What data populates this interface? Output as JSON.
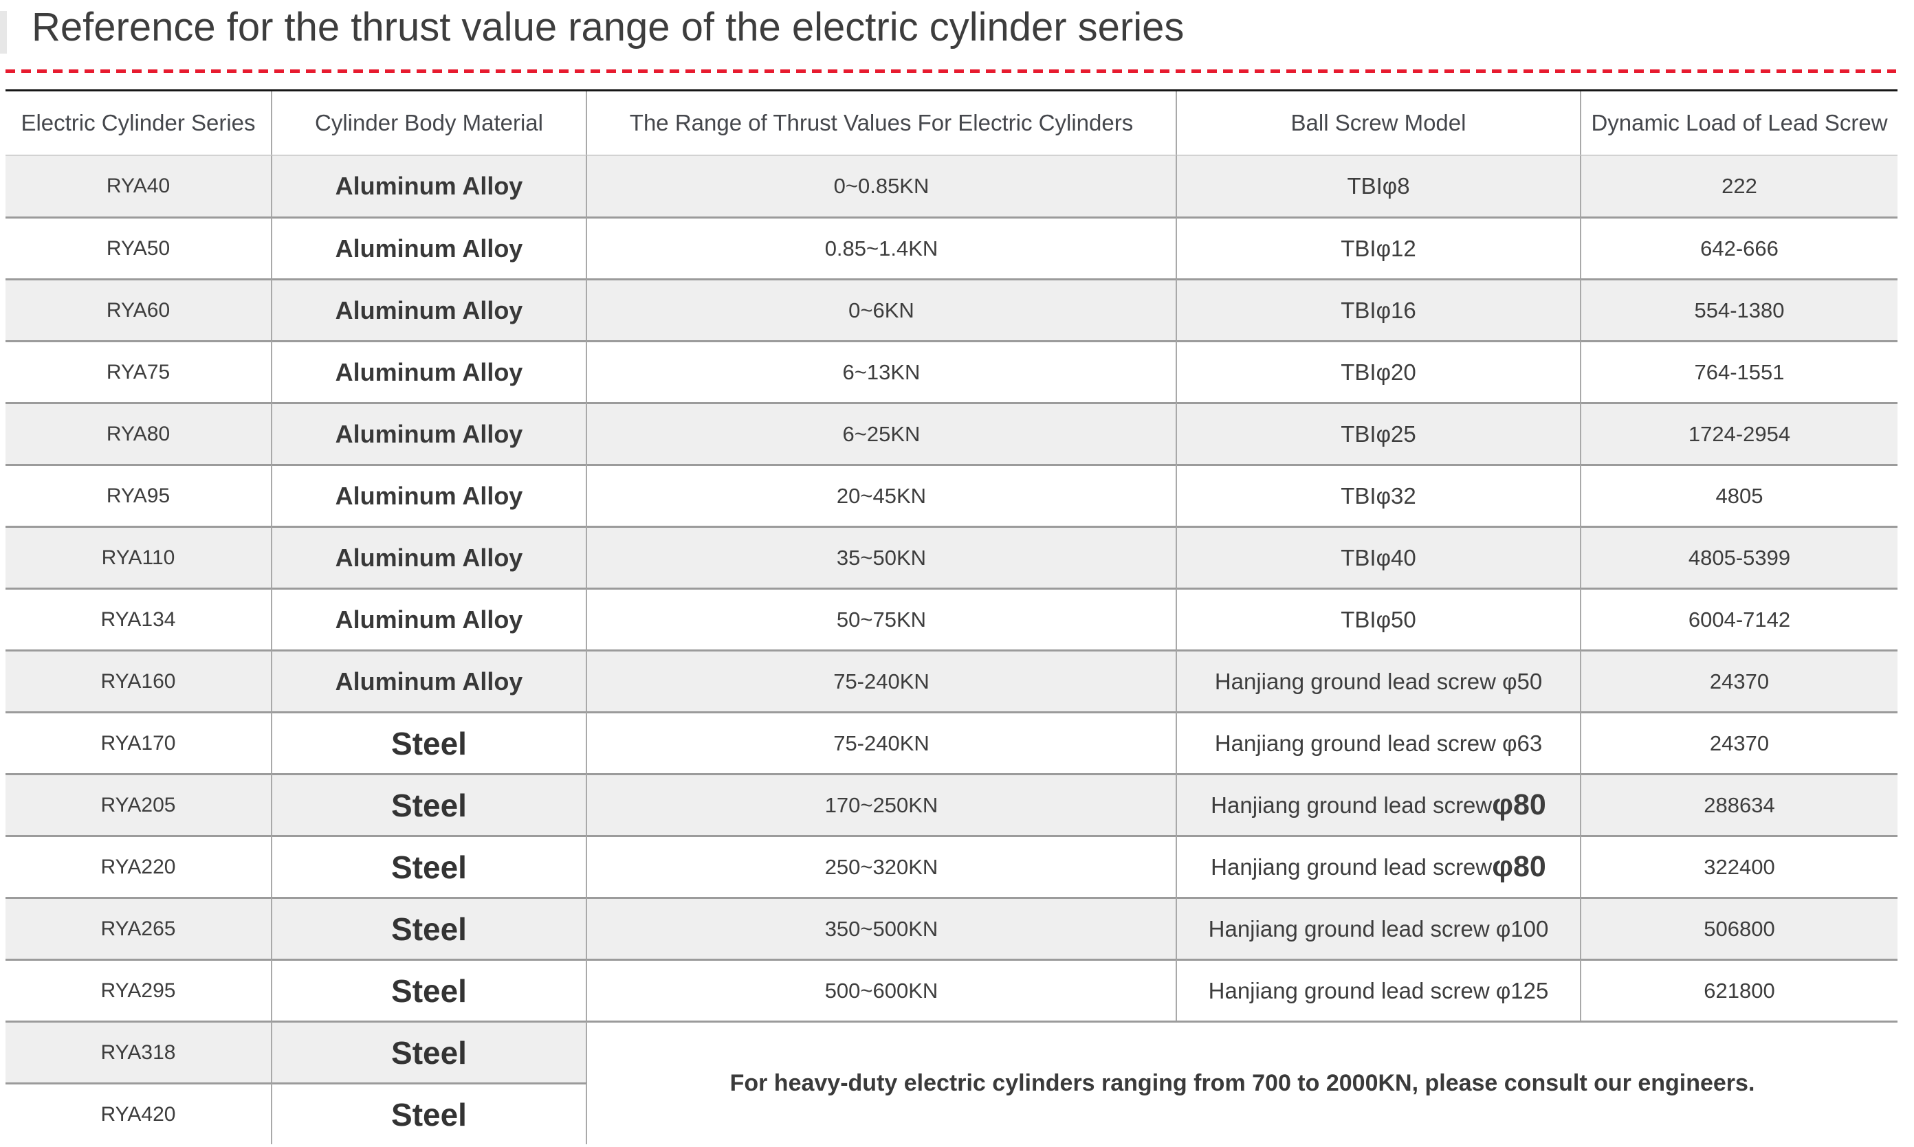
{
  "page": {
    "title": "Reference for the thrust value range of the electric cylinder series"
  },
  "accent": {
    "dashed_divider_color": "#e71b2f",
    "stripe_color": "#efefef",
    "top_border_color": "#161616"
  },
  "table": {
    "headers": [
      "Electric Cylinder Series",
      "Cylinder Body Material",
      "The Range of Thrust Values For Electric Cylinders",
      "Ball Screw Model",
      "Dynamic Load of Lead Screw"
    ],
    "rows": [
      {
        "series": "RYA40",
        "material": "Aluminum Alloy",
        "thrust": "0~0.85KN",
        "model": "TBIφ8",
        "model_big": "",
        "load": "222"
      },
      {
        "series": "RYA50",
        "material": "Aluminum Alloy",
        "thrust": "0.85~1.4KN",
        "model": "TBIφ12",
        "model_big": "",
        "load": "642-666"
      },
      {
        "series": "RYA60",
        "material": "Aluminum Alloy",
        "thrust": "0~6KN",
        "model": "TBIφ16",
        "model_big": "",
        "load": "554-1380"
      },
      {
        "series": "RYA75",
        "material": "Aluminum Alloy",
        "thrust": "6~13KN",
        "model": "TBIφ20",
        "model_big": "",
        "load": "764-1551"
      },
      {
        "series": "RYA80",
        "material": "Aluminum Alloy",
        "thrust": "6~25KN",
        "model": "TBIφ25",
        "model_big": "",
        "load": "1724-2954"
      },
      {
        "series": "RYA95",
        "material": "Aluminum Alloy",
        "thrust": "20~45KN",
        "model": "TBIφ32",
        "model_big": "",
        "load": "4805"
      },
      {
        "series": "RYA110",
        "material": "Aluminum Alloy",
        "thrust": "35~50KN",
        "model": "TBIφ40",
        "model_big": "",
        "load": "4805-5399"
      },
      {
        "series": "RYA134",
        "material": "Aluminum Alloy",
        "thrust": "50~75KN",
        "model": "TBIφ50",
        "model_big": "",
        "load": "6004-7142"
      },
      {
        "series": "RYA160",
        "material": "Aluminum Alloy",
        "thrust": "75-240KN",
        "model": "Hanjiang ground lead screw φ50",
        "model_big": "",
        "load": "24370"
      },
      {
        "series": "RYA170",
        "material": "Steel",
        "thrust": "75-240KN",
        "model": "Hanjiang ground lead screw φ63",
        "model_big": "",
        "load": "24370"
      },
      {
        "series": "RYA205",
        "material": "Steel",
        "thrust": "170~250KN",
        "model": "Hanjiang ground lead screw ",
        "model_big": "φ80",
        "load": "288634"
      },
      {
        "series": "RYA220",
        "material": "Steel",
        "thrust": "250~320KN",
        "model": "Hanjiang ground lead screw ",
        "model_big": "φ80",
        "load": "322400"
      },
      {
        "series": "RYA265",
        "material": "Steel",
        "thrust": "350~500KN",
        "model": "Hanjiang ground lead screw φ100",
        "model_big": "",
        "load": "506800"
      },
      {
        "series": "RYA295",
        "material": "Steel",
        "thrust": "500~600KN",
        "model": "Hanjiang ground lead screw φ125",
        "model_big": "",
        "load": "621800"
      },
      {
        "series": "RYA318",
        "material": "Steel"
      },
      {
        "series": "RYA420",
        "material": "Steel"
      }
    ],
    "footer_note": "For heavy-duty electric cylinders ranging from 700 to 2000KN, please consult our engineers."
  }
}
